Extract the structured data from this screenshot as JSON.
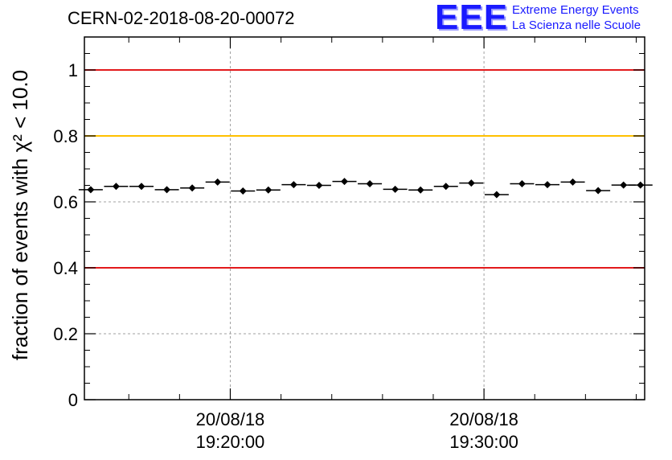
{
  "header": {
    "title": "CERN-02-2018-08-20-00072",
    "logo_text": "EEE",
    "logo_line1": "Extreme Energy Events",
    "logo_line2": "La Scienza nelle Scuole"
  },
  "colors": {
    "logo": "#1a1aff",
    "limit_red": "#e31a1c",
    "limit_orange": "#ffc000",
    "grid": "#a0a0a0",
    "marker": "#000000"
  },
  "chart_data": {
    "type": "scatter",
    "title": "CERN-02-2018-08-20-00072",
    "ylabel": "fraction of events with χ² < 10.0",
    "xlabel": "",
    "ylim": [
      0,
      1.1
    ],
    "xlim": [
      "2018-08-20 19:14:15",
      "2018-08-20 19:36:20"
    ],
    "yticks": [
      "0",
      "0.2",
      "0.4",
      "0.6",
      "0.8",
      "1"
    ],
    "xticks": [
      {
        "date": "20/08/18",
        "time": "19:20:00"
      },
      {
        "date": "20/08/18",
        "time": "19:30:00"
      }
    ],
    "grid": true,
    "reference_lines": [
      {
        "y": 1.0,
        "color": "red"
      },
      {
        "y": 0.8,
        "color": "orange"
      },
      {
        "y": 0.4,
        "color": "red"
      }
    ],
    "series": [
      {
        "x": [
          "19:14:30",
          "19:15:30",
          "19:16:30",
          "19:17:30",
          "19:18:30",
          "19:19:30",
          "19:20:30",
          "19:21:30",
          "19:22:30",
          "19:23:30",
          "19:24:30",
          "19:25:30",
          "19:26:30",
          "19:27:30",
          "19:28:30",
          "19:29:30",
          "19:30:30",
          "19:31:30",
          "19:32:30",
          "19:33:30",
          "19:34:30",
          "19:35:30",
          "19:36:10"
        ],
        "y": [
          0.637,
          0.647,
          0.647,
          0.637,
          0.642,
          0.66,
          0.633,
          0.636,
          0.652,
          0.65,
          0.662,
          0.655,
          0.638,
          0.636,
          0.647,
          0.657,
          0.622,
          0.655,
          0.652,
          0.66,
          0.634,
          0.651,
          0.651
        ]
      }
    ]
  }
}
